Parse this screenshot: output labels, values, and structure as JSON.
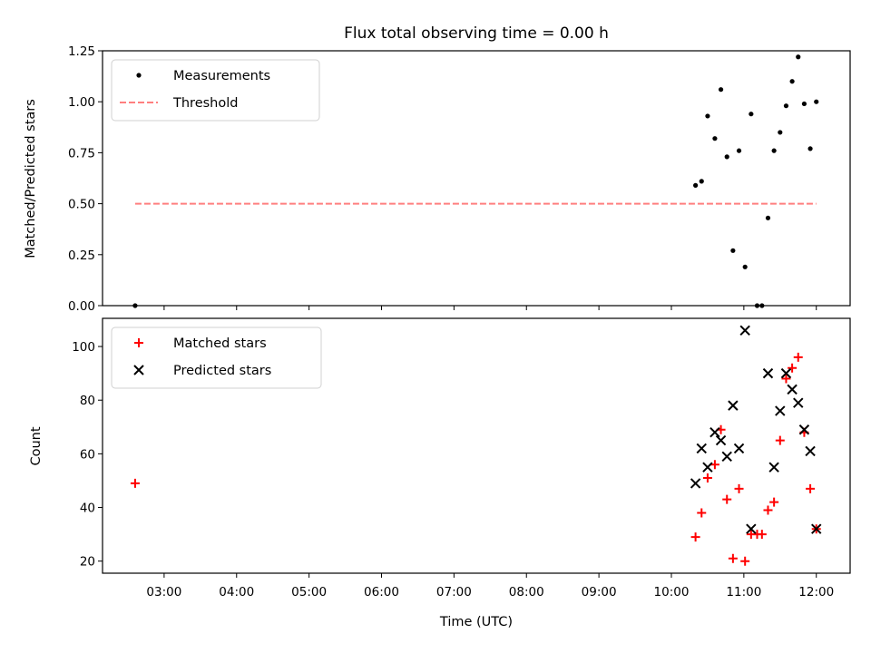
{
  "chart_data": {
    "title": "Flux total observing time = 0.00 h",
    "xlabel": "Time (UTC)",
    "x_unit": "hours UTC",
    "xlim": [
      "02:09",
      "12:28"
    ],
    "xticks": [
      "03:00",
      "04:00",
      "05:00",
      "06:00",
      "07:00",
      "08:00",
      "09:00",
      "10:00",
      "11:00",
      "12:00"
    ],
    "panels": [
      {
        "type": "scatter",
        "ylabel": "Matched/Predicted stars",
        "ylim": [
          0,
          1.25
        ],
        "yticks": [
          "0.00",
          "0.25",
          "0.50",
          "0.75",
          "1.00",
          "1.25"
        ],
        "legend_position": "top-left",
        "series": [
          {
            "name": "Measurements",
            "marker": "dot",
            "color": "#000000",
            "points": [
              [
                "02:36",
                0.0
              ],
              [
                "10:20",
                0.59
              ],
              [
                "10:25",
                0.61
              ],
              [
                "10:30",
                0.93
              ],
              [
                "10:36",
                0.82
              ],
              [
                "10:41",
                1.06
              ],
              [
                "10:46",
                0.73
              ],
              [
                "10:51",
                0.27
              ],
              [
                "10:56",
                0.76
              ],
              [
                "11:01",
                0.19
              ],
              [
                "11:06",
                0.94
              ],
              [
                "11:11",
                0.0
              ],
              [
                "11:15",
                0.0
              ],
              [
                "11:20",
                0.43
              ],
              [
                "11:25",
                0.76
              ],
              [
                "11:30",
                0.85
              ],
              [
                "11:35",
                0.98
              ],
              [
                "11:40",
                1.1
              ],
              [
                "11:45",
                1.22
              ],
              [
                "11:50",
                0.99
              ],
              [
                "11:55",
                0.77
              ],
              [
                "12:00",
                1.0
              ]
            ]
          },
          {
            "name": "Threshold",
            "line": "dashed",
            "color": "#ff7f7f",
            "points": [
              [
                "02:36",
                0.5
              ],
              [
                "12:00",
                0.5
              ]
            ]
          }
        ]
      },
      {
        "type": "scatter",
        "ylabel": "Count",
        "ylim": [
          15.5,
          110.5
        ],
        "yticks": [
          "20",
          "40",
          "60",
          "80",
          "100"
        ],
        "legend_position": "top-left",
        "series": [
          {
            "name": "Matched stars",
            "marker": "plus",
            "color": "#ff0000",
            "points": [
              [
                "02:36",
                49
              ],
              [
                "10:20",
                29
              ],
              [
                "10:25",
                38
              ],
              [
                "10:30",
                51
              ],
              [
                "10:36",
                56
              ],
              [
                "10:41",
                69
              ],
              [
                "10:46",
                43
              ],
              [
                "10:51",
                21
              ],
              [
                "10:56",
                47
              ],
              [
                "11:01",
                20
              ],
              [
                "11:06",
                30
              ],
              [
                "11:11",
                30
              ],
              [
                "11:15",
                30
              ],
              [
                "11:20",
                39
              ],
              [
                "11:25",
                42
              ],
              [
                "11:30",
                65
              ],
              [
                "11:35",
                88
              ],
              [
                "11:40",
                92
              ],
              [
                "11:45",
                96
              ],
              [
                "11:50",
                68
              ],
              [
                "11:55",
                47
              ],
              [
                "12:00",
                32
              ]
            ]
          },
          {
            "name": "Predicted stars",
            "marker": "x",
            "color": "#000000",
            "points": [
              [
                "10:20",
                49
              ],
              [
                "10:25",
                62
              ],
              [
                "10:30",
                55
              ],
              [
                "10:36",
                68
              ],
              [
                "10:41",
                65
              ],
              [
                "10:46",
                59
              ],
              [
                "10:51",
                78
              ],
              [
                "10:56",
                62
              ],
              [
                "11:01",
                106
              ],
              [
                "11:06",
                32
              ],
              [
                "11:20",
                90
              ],
              [
                "11:25",
                55
              ],
              [
                "11:30",
                76
              ],
              [
                "11:35",
                90
              ],
              [
                "11:40",
                84
              ],
              [
                "11:45",
                79
              ],
              [
                "11:50",
                69
              ],
              [
                "11:55",
                61
              ],
              [
                "12:00",
                32
              ]
            ]
          }
        ]
      }
    ]
  }
}
